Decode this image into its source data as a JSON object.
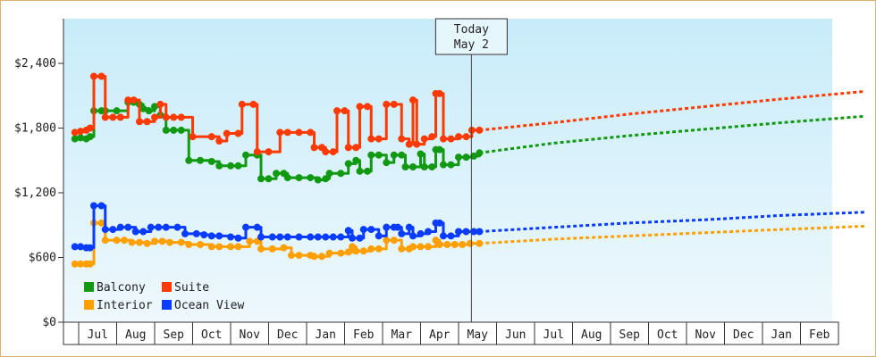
{
  "colors": {
    "balcony": "#119911",
    "suite": "#ff3a00",
    "interior": "#ffa000",
    "ocean_view": "#0a3cff",
    "plot_top": "#c8ecfa",
    "plot_bottom": "#eef8fd"
  },
  "chart_data": {
    "type": "line",
    "title": "",
    "xlabel": "",
    "ylabel": "",
    "yticks": [
      "$0",
      "$600",
      "$1,200",
      "$1,800",
      "$2,400"
    ],
    "ylim": [
      0,
      2400
    ],
    "x_months": [
      "Jul",
      "Aug",
      "Sep",
      "Oct",
      "Nov",
      "Dec",
      "Jan",
      "Feb",
      "Mar",
      "Apr",
      "May",
      "Jun",
      "Jul",
      "Aug",
      "Sep",
      "Oct",
      "Nov",
      "Dec",
      "Jan",
      "Feb"
    ],
    "today": {
      "line1": "Today",
      "line2": "May 2",
      "month_index": 10.05
    },
    "legend": [
      {
        "key": "balcony",
        "label": "Balcony"
      },
      {
        "key": "suite",
        "label": "Suite"
      },
      {
        "key": "interior",
        "label": "Interior"
      },
      {
        "key": "ocean_view",
        "label": "Ocean View"
      }
    ],
    "grid": false,
    "legend_position": "bottom-left",
    "series": [
      {
        "key": "balcony",
        "name": "Balcony",
        "points": [
          [
            -0.6,
            1700
          ],
          [
            -0.45,
            1710
          ],
          [
            -0.3,
            1700
          ],
          [
            -0.2,
            1720
          ],
          [
            -0.1,
            1960
          ],
          [
            0.1,
            1960
          ],
          [
            0.2,
            1960
          ],
          [
            0.5,
            1960
          ],
          [
            0.8,
            2040
          ],
          [
            0.95,
            2040
          ],
          [
            1.1,
            2020
          ],
          [
            1.2,
            1980
          ],
          [
            1.35,
            1960
          ],
          [
            1.5,
            2000
          ],
          [
            1.65,
            1920
          ],
          [
            1.8,
            1780
          ],
          [
            2.0,
            1780
          ],
          [
            2.2,
            1780
          ],
          [
            2.4,
            1500
          ],
          [
            2.7,
            1500
          ],
          [
            3.0,
            1490
          ],
          [
            3.2,
            1450
          ],
          [
            3.5,
            1450
          ],
          [
            3.7,
            1450
          ],
          [
            3.9,
            1550
          ],
          [
            4.2,
            1550
          ],
          [
            4.3,
            1330
          ],
          [
            4.5,
            1330
          ],
          [
            4.7,
            1380
          ],
          [
            4.9,
            1380
          ],
          [
            5.0,
            1340
          ],
          [
            5.3,
            1340
          ],
          [
            5.6,
            1340
          ],
          [
            5.8,
            1320
          ],
          [
            6.0,
            1330
          ],
          [
            6.1,
            1380
          ],
          [
            6.4,
            1380
          ],
          [
            6.6,
            1470
          ],
          [
            6.8,
            1500
          ],
          [
            6.9,
            1400
          ],
          [
            7.1,
            1400
          ],
          [
            7.2,
            1550
          ],
          [
            7.4,
            1550
          ],
          [
            7.6,
            1480
          ],
          [
            7.8,
            1550
          ],
          [
            8.0,
            1550
          ],
          [
            8.1,
            1440
          ],
          [
            8.3,
            1440
          ],
          [
            8.5,
            1560
          ],
          [
            8.6,
            1440
          ],
          [
            8.8,
            1440
          ],
          [
            8.9,
            1600
          ],
          [
            9.0,
            1600
          ],
          [
            9.1,
            1460
          ],
          [
            9.3,
            1460
          ],
          [
            9.5,
            1530
          ],
          [
            9.7,
            1530
          ],
          [
            9.9,
            1540
          ],
          [
            10.05,
            1570
          ],
          [
            12,
            1660
          ],
          [
            14,
            1730
          ],
          [
            16,
            1790
          ],
          [
            18,
            1850
          ],
          [
            20.2,
            1910
          ]
        ]
      },
      {
        "key": "suite",
        "name": "Suite",
        "points": [
          [
            -0.6,
            1760
          ],
          [
            -0.45,
            1770
          ],
          [
            -0.3,
            1780
          ],
          [
            -0.2,
            1800
          ],
          [
            -0.1,
            2280
          ],
          [
            0.1,
            2280
          ],
          [
            0.2,
            1900
          ],
          [
            0.4,
            1900
          ],
          [
            0.6,
            1900
          ],
          [
            0.8,
            2060
          ],
          [
            0.95,
            2060
          ],
          [
            1.1,
            1860
          ],
          [
            1.3,
            1860
          ],
          [
            1.5,
            1900
          ],
          [
            1.65,
            2020
          ],
          [
            1.8,
            1900
          ],
          [
            2.0,
            1900
          ],
          [
            2.2,
            1900
          ],
          [
            2.5,
            1720
          ],
          [
            3.0,
            1720
          ],
          [
            3.2,
            1680
          ],
          [
            3.4,
            1750
          ],
          [
            3.7,
            1750
          ],
          [
            3.8,
            2020
          ],
          [
            4.1,
            2020
          ],
          [
            4.2,
            1580
          ],
          [
            4.5,
            1580
          ],
          [
            4.8,
            1760
          ],
          [
            5.0,
            1760
          ],
          [
            5.3,
            1760
          ],
          [
            5.6,
            1760
          ],
          [
            5.7,
            1620
          ],
          [
            5.9,
            1620
          ],
          [
            6.0,
            1580
          ],
          [
            6.2,
            1580
          ],
          [
            6.3,
            1960
          ],
          [
            6.5,
            1960
          ],
          [
            6.6,
            1620
          ],
          [
            6.8,
            1620
          ],
          [
            6.9,
            2000
          ],
          [
            7.1,
            2000
          ],
          [
            7.2,
            1700
          ],
          [
            7.4,
            1700
          ],
          [
            7.6,
            2020
          ],
          [
            7.8,
            2020
          ],
          [
            8.0,
            1700
          ],
          [
            8.2,
            1650
          ],
          [
            8.3,
            2060
          ],
          [
            8.4,
            1650
          ],
          [
            8.6,
            1700
          ],
          [
            8.8,
            1720
          ],
          [
            8.9,
            2120
          ],
          [
            9.0,
            2120
          ],
          [
            9.1,
            1700
          ],
          [
            9.3,
            1700
          ],
          [
            9.5,
            1720
          ],
          [
            9.7,
            1720
          ],
          [
            9.85,
            1780
          ],
          [
            10.05,
            1780
          ],
          [
            12,
            1850
          ],
          [
            14,
            1930
          ],
          [
            16,
            2000
          ],
          [
            18,
            2070
          ],
          [
            20.2,
            2140
          ]
        ]
      },
      {
        "key": "interior",
        "name": "Interior",
        "points": [
          [
            -0.6,
            540
          ],
          [
            -0.45,
            540
          ],
          [
            -0.3,
            540
          ],
          [
            -0.2,
            540
          ],
          [
            -0.1,
            920
          ],
          [
            0.1,
            920
          ],
          [
            0.2,
            760
          ],
          [
            0.5,
            760
          ],
          [
            0.7,
            760
          ],
          [
            0.9,
            740
          ],
          [
            1.1,
            740
          ],
          [
            1.3,
            730
          ],
          [
            1.5,
            750
          ],
          [
            1.7,
            750
          ],
          [
            1.9,
            740
          ],
          [
            2.2,
            740
          ],
          [
            2.4,
            720
          ],
          [
            2.7,
            720
          ],
          [
            3.0,
            700
          ],
          [
            3.2,
            700
          ],
          [
            3.5,
            700
          ],
          [
            3.7,
            700
          ],
          [
            4.0,
            750
          ],
          [
            4.2,
            750
          ],
          [
            4.3,
            680
          ],
          [
            4.6,
            680
          ],
          [
            4.9,
            690
          ],
          [
            5.1,
            620
          ],
          [
            5.3,
            620
          ],
          [
            5.6,
            620
          ],
          [
            5.7,
            610
          ],
          [
            5.9,
            610
          ],
          [
            6.1,
            640
          ],
          [
            6.4,
            640
          ],
          [
            6.6,
            650
          ],
          [
            6.7,
            700
          ],
          [
            6.8,
            660
          ],
          [
            7.0,
            660
          ],
          [
            7.2,
            680
          ],
          [
            7.4,
            680
          ],
          [
            7.6,
            760
          ],
          [
            7.8,
            760
          ],
          [
            8.0,
            680
          ],
          [
            8.2,
            680
          ],
          [
            8.3,
            700
          ],
          [
            8.5,
            700
          ],
          [
            8.7,
            700
          ],
          [
            8.9,
            760
          ],
          [
            9.0,
            720
          ],
          [
            9.2,
            720
          ],
          [
            9.4,
            720
          ],
          [
            9.6,
            720
          ],
          [
            9.8,
            730
          ],
          [
            10.05,
            730
          ],
          [
            12,
            770
          ],
          [
            14,
            800
          ],
          [
            16,
            830
          ],
          [
            18,
            860
          ],
          [
            20.2,
            890
          ]
        ]
      },
      {
        "key": "ocean_view",
        "name": "Ocean View",
        "points": [
          [
            -0.6,
            700
          ],
          [
            -0.45,
            700
          ],
          [
            -0.3,
            690
          ],
          [
            -0.2,
            690
          ],
          [
            -0.1,
            1080
          ],
          [
            0.1,
            1080
          ],
          [
            0.2,
            860
          ],
          [
            0.4,
            860
          ],
          [
            0.6,
            880
          ],
          [
            0.8,
            880
          ],
          [
            1.0,
            840
          ],
          [
            1.2,
            840
          ],
          [
            1.4,
            880
          ],
          [
            1.6,
            880
          ],
          [
            1.8,
            880
          ],
          [
            2.1,
            880
          ],
          [
            2.3,
            820
          ],
          [
            2.6,
            820
          ],
          [
            2.8,
            810
          ],
          [
            3.0,
            800
          ],
          [
            3.2,
            800
          ],
          [
            3.5,
            790
          ],
          [
            3.7,
            780
          ],
          [
            3.9,
            880
          ],
          [
            4.2,
            880
          ],
          [
            4.3,
            790
          ],
          [
            4.6,
            790
          ],
          [
            4.8,
            790
          ],
          [
            5.0,
            790
          ],
          [
            5.3,
            790
          ],
          [
            5.6,
            790
          ],
          [
            5.8,
            790
          ],
          [
            6.0,
            790
          ],
          [
            6.2,
            790
          ],
          [
            6.4,
            790
          ],
          [
            6.6,
            850
          ],
          [
            6.7,
            780
          ],
          [
            6.9,
            780
          ],
          [
            7.0,
            860
          ],
          [
            7.2,
            860
          ],
          [
            7.4,
            800
          ],
          [
            7.6,
            880
          ],
          [
            7.8,
            880
          ],
          [
            7.9,
            880
          ],
          [
            8.0,
            820
          ],
          [
            8.2,
            880
          ],
          [
            8.3,
            800
          ],
          [
            8.5,
            820
          ],
          [
            8.7,
            840
          ],
          [
            8.9,
            920
          ],
          [
            9.0,
            920
          ],
          [
            9.1,
            800
          ],
          [
            9.3,
            800
          ],
          [
            9.5,
            840
          ],
          [
            9.7,
            840
          ],
          [
            9.9,
            840
          ],
          [
            10.05,
            840
          ],
          [
            12,
            880
          ],
          [
            14,
            920
          ],
          [
            16,
            950
          ],
          [
            18,
            990
          ],
          [
            20.2,
            1020
          ]
        ]
      }
    ]
  }
}
